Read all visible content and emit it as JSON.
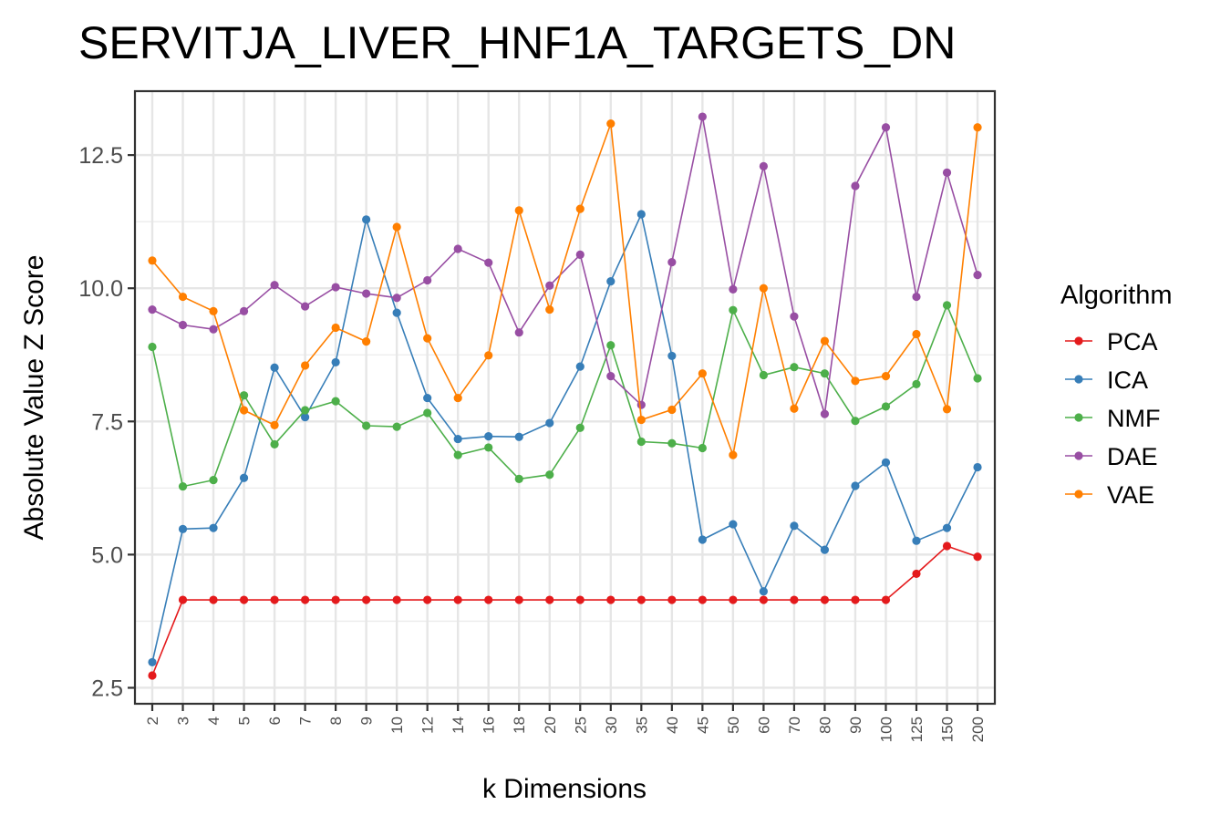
{
  "chart_data": {
    "type": "line",
    "title": "SERVITJA_LIVER_HNF1A_TARGETS_DN",
    "xlabel": "k Dimensions",
    "ylabel": "Absolute Value Z Score",
    "x": [
      "2",
      "3",
      "4",
      "5",
      "6",
      "7",
      "8",
      "9",
      "10",
      "12",
      "14",
      "16",
      "18",
      "20",
      "25",
      "30",
      "35",
      "40",
      "45",
      "50",
      "60",
      "70",
      "80",
      "90",
      "100",
      "125",
      "150",
      "200"
    ],
    "ylim": [
      2.2,
      13.7
    ],
    "yticks": [
      2.5,
      5.0,
      7.5,
      10.0,
      12.5
    ],
    "ytick_labels": [
      "2.5",
      "5.0",
      "7.5",
      "10.0",
      "12.5"
    ],
    "grid": true,
    "legend": {
      "title": "Algorithm",
      "placement": "right"
    },
    "series": [
      {
        "name": "PCA",
        "color": "#e41a1c",
        "values": [
          2.73,
          4.15,
          4.15,
          4.15,
          4.15,
          4.15,
          4.15,
          4.15,
          4.15,
          4.15,
          4.15,
          4.15,
          4.15,
          4.15,
          4.15,
          4.15,
          4.15,
          4.15,
          4.15,
          4.15,
          4.15,
          4.15,
          4.15,
          4.15,
          4.15,
          4.64,
          5.16,
          4.96
        ]
      },
      {
        "name": "ICA",
        "color": "#377eb8",
        "values": [
          2.98,
          5.48,
          5.5,
          6.44,
          8.51,
          7.58,
          8.61,
          11.29,
          9.54,
          7.94,
          7.17,
          7.22,
          7.21,
          7.47,
          8.53,
          10.13,
          11.39,
          8.73,
          5.28,
          5.57,
          4.31,
          5.54,
          5.09,
          6.29,
          6.73,
          5.26,
          5.5,
          6.64
        ]
      },
      {
        "name": "NMF",
        "color": "#4daf4a",
        "values": [
          8.9,
          6.28,
          6.4,
          7.99,
          7.07,
          7.71,
          7.88,
          7.42,
          7.4,
          7.66,
          6.87,
          7.01,
          6.42,
          6.5,
          7.38,
          8.93,
          7.12,
          7.09,
          7.0,
          9.59,
          8.37,
          8.52,
          8.4,
          7.51,
          7.78,
          8.2,
          9.68,
          8.31
        ]
      },
      {
        "name": "DAE",
        "color": "#984ea3",
        "values": [
          9.6,
          9.31,
          9.23,
          9.57,
          10.06,
          9.66,
          10.02,
          9.9,
          9.82,
          10.15,
          10.74,
          10.48,
          9.17,
          10.05,
          10.63,
          8.35,
          7.81,
          10.49,
          13.22,
          9.98,
          12.29,
          9.47,
          7.64,
          11.92,
          13.02,
          9.84,
          12.17,
          10.25
        ]
      },
      {
        "name": "VAE",
        "color": "#ff7f00",
        "values": [
          10.52,
          9.84,
          9.57,
          7.71,
          7.43,
          8.55,
          9.26,
          9.0,
          11.15,
          9.06,
          7.94,
          8.74,
          11.46,
          9.6,
          11.49,
          13.09,
          7.53,
          7.72,
          8.4,
          6.87,
          10.0,
          7.74,
          9.01,
          8.26,
          8.35,
          9.14,
          7.73,
          13.02
        ]
      }
    ]
  }
}
